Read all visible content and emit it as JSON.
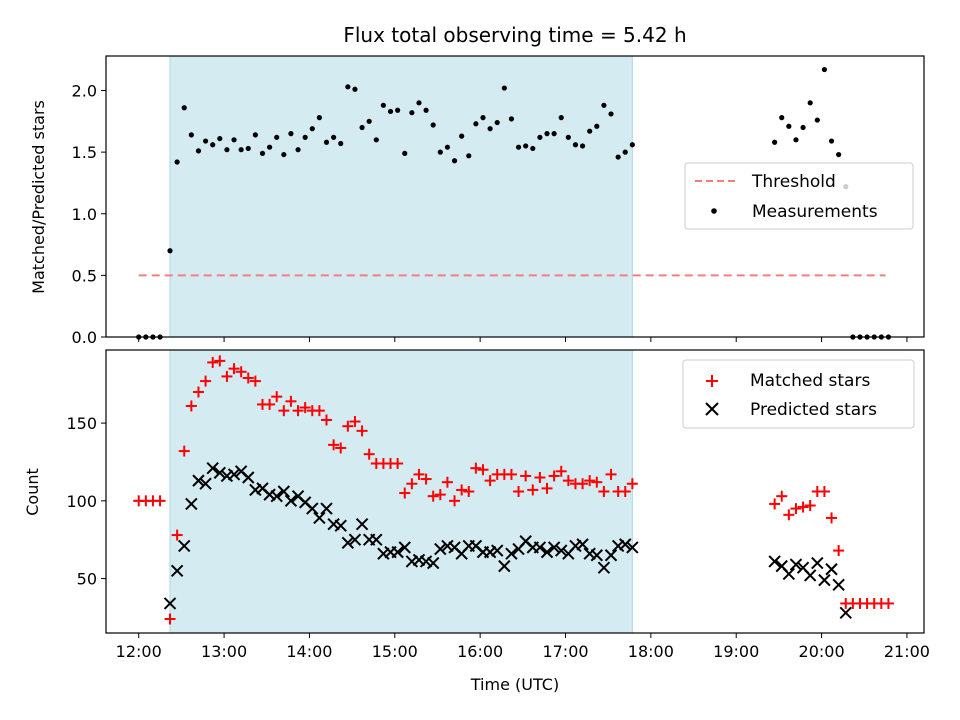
{
  "chart_data": [
    {
      "type": "scatter",
      "title": "Flux total observing time = 5.42 h",
      "xlabel": "",
      "ylabel": "Matched/Predicted stars",
      "xlim": [
        "11:37",
        "21:12"
      ],
      "ylim": [
        0,
        2.28
      ],
      "yticks": [
        0.0,
        0.5,
        1.0,
        1.5,
        2.0
      ],
      "ytick_labels": [
        "0.0",
        "0.5",
        "1.0",
        "1.5",
        "2.0"
      ],
      "shaded_interval": [
        "12:22",
        "17:47"
      ],
      "legend": {
        "placement": "center-right",
        "entries": [
          "Threshold",
          "Measurements"
        ]
      },
      "series": [
        {
          "name": "Threshold",
          "kind": "dashed-line",
          "color": "#f08080",
          "points": [
            [
              "12:00",
              0.5
            ],
            [
              "20:45",
              0.5
            ]
          ]
        },
        {
          "name": "Measurements",
          "kind": "dot",
          "color": "#000000",
          "points": [
            [
              "12:00",
              0.0
            ],
            [
              "12:05",
              0.0
            ],
            [
              "12:10",
              0.0
            ],
            [
              "12:15",
              0.0
            ],
            [
              "12:22",
              0.7
            ],
            [
              "12:27",
              1.42
            ],
            [
              "12:32",
              1.86
            ],
            [
              "12:37",
              1.64
            ],
            [
              "12:42",
              1.51
            ],
            [
              "12:47",
              1.59
            ],
            [
              "12:52",
              1.56
            ],
            [
              "12:57",
              1.61
            ],
            [
              "13:02",
              1.52
            ],
            [
              "13:07",
              1.6
            ],
            [
              "13:12",
              1.52
            ],
            [
              "13:17",
              1.53
            ],
            [
              "13:22",
              1.64
            ],
            [
              "13:27",
              1.49
            ],
            [
              "13:32",
              1.54
            ],
            [
              "13:37",
              1.62
            ],
            [
              "13:42",
              1.48
            ],
            [
              "13:47",
              1.65
            ],
            [
              "13:52",
              1.52
            ],
            [
              "13:57",
              1.62
            ],
            [
              "14:02",
              1.69
            ],
            [
              "14:07",
              1.78
            ],
            [
              "14:12",
              1.58
            ],
            [
              "14:17",
              1.62
            ],
            [
              "14:22",
              1.57
            ],
            [
              "14:27",
              2.03
            ],
            [
              "14:32",
              2.01
            ],
            [
              "14:37",
              1.7
            ],
            [
              "14:42",
              1.75
            ],
            [
              "14:47",
              1.6
            ],
            [
              "14:52",
              1.88
            ],
            [
              "14:57",
              1.83
            ],
            [
              "15:02",
              1.84
            ],
            [
              "15:07",
              1.49
            ],
            [
              "15:12",
              1.82
            ],
            [
              "15:17",
              1.9
            ],
            [
              "15:22",
              1.84
            ],
            [
              "15:27",
              1.72
            ],
            [
              "15:32",
              1.5
            ],
            [
              "15:37",
              1.54
            ],
            [
              "15:42",
              1.43
            ],
            [
              "15:47",
              1.63
            ],
            [
              "15:52",
              1.47
            ],
            [
              "15:57",
              1.73
            ],
            [
              "16:02",
              1.78
            ],
            [
              "16:07",
              1.69
            ],
            [
              "16:12",
              1.74
            ],
            [
              "16:17",
              2.02
            ],
            [
              "16:22",
              1.77
            ],
            [
              "16:27",
              1.54
            ],
            [
              "16:32",
              1.55
            ],
            [
              "16:37",
              1.53
            ],
            [
              "16:42",
              1.62
            ],
            [
              "16:47",
              1.65
            ],
            [
              "16:52",
              1.65
            ],
            [
              "16:57",
              1.78
            ],
            [
              "17:02",
              1.62
            ],
            [
              "17:07",
              1.56
            ],
            [
              "17:12",
              1.55
            ],
            [
              "17:17",
              1.67
            ],
            [
              "17:22",
              1.71
            ],
            [
              "17:27",
              1.88
            ],
            [
              "17:32",
              1.81
            ],
            [
              "17:37",
              1.46
            ],
            [
              "17:42",
              1.5
            ],
            [
              "17:47",
              1.56
            ],
            [
              "19:27",
              1.58
            ],
            [
              "19:32",
              1.78
            ],
            [
              "19:37",
              1.71
            ],
            [
              "19:42",
              1.6
            ],
            [
              "19:47",
              1.7
            ],
            [
              "19:52",
              1.9
            ],
            [
              "19:57",
              1.76
            ],
            [
              "20:02",
              2.17
            ],
            [
              "20:07",
              1.59
            ],
            [
              "20:12",
              1.48
            ],
            [
              "20:17",
              1.22
            ],
            [
              "20:22",
              0.0
            ],
            [
              "20:27",
              0.0
            ],
            [
              "20:32",
              0.0
            ],
            [
              "20:37",
              0.0
            ],
            [
              "20:42",
              0.0
            ],
            [
              "20:47",
              0.0
            ]
          ]
        }
      ]
    },
    {
      "type": "scatter",
      "title": "",
      "xlabel": "Time (UTC)",
      "ylabel": "Count",
      "xlim": [
        "11:37",
        "21:12"
      ],
      "ylim": [
        15,
        197
      ],
      "xticks": [
        "12:00",
        "13:00",
        "14:00",
        "15:00",
        "16:00",
        "17:00",
        "18:00",
        "19:00",
        "20:00",
        "21:00"
      ],
      "yticks": [
        50,
        100,
        150
      ],
      "shaded_interval": [
        "12:22",
        "17:47"
      ],
      "legend": {
        "placement": "top-right",
        "entries": [
          "Matched stars",
          "Predicted stars"
        ]
      },
      "series": [
        {
          "name": "Matched stars",
          "kind": "plus",
          "color": "#ff0000",
          "points": [
            [
              "12:00",
              100
            ],
            [
              "12:05",
              100
            ],
            [
              "12:10",
              100
            ],
            [
              "12:15",
              100
            ],
            [
              "12:22",
              24
            ],
            [
              "12:27",
              78
            ],
            [
              "12:32",
              132
            ],
            [
              "12:37",
              161
            ],
            [
              "12:42",
              170
            ],
            [
              "12:47",
              177
            ],
            [
              "12:52",
              189
            ],
            [
              "12:57",
              190
            ],
            [
              "13:02",
              180
            ],
            [
              "13:07",
              185
            ],
            [
              "13:12",
              183
            ],
            [
              "13:17",
              179
            ],
            [
              "13:22",
              177
            ],
            [
              "13:27",
              162
            ],
            [
              "13:32",
              162
            ],
            [
              "13:37",
              167
            ],
            [
              "13:42",
              158
            ],
            [
              "13:47",
              164
            ],
            [
              "13:52",
              158
            ],
            [
              "13:57",
              160
            ],
            [
              "14:02",
              158
            ],
            [
              "14:07",
              158
            ],
            [
              "14:12",
              152
            ],
            [
              "14:17",
              136
            ],
            [
              "14:22",
              134
            ],
            [
              "14:27",
              148
            ],
            [
              "14:32",
              151
            ],
            [
              "14:37",
              145
            ],
            [
              "14:42",
              130
            ],
            [
              "14:47",
              124
            ],
            [
              "14:52",
              124
            ],
            [
              "14:57",
              124
            ],
            [
              "15:02",
              124
            ],
            [
              "15:07",
              105
            ],
            [
              "15:12",
              111
            ],
            [
              "15:17",
              117
            ],
            [
              "15:22",
              114
            ],
            [
              "15:27",
              103
            ],
            [
              "15:32",
              104
            ],
            [
              "15:37",
              112
            ],
            [
              "15:42",
              100
            ],
            [
              "15:47",
              107
            ],
            [
              "15:52",
              106
            ],
            [
              "15:57",
              121
            ],
            [
              "16:02",
              120
            ],
            [
              "16:07",
              113
            ],
            [
              "16:12",
              117
            ],
            [
              "16:17",
              117
            ],
            [
              "16:22",
              117
            ],
            [
              "16:27",
              106
            ],
            [
              "16:32",
              116
            ],
            [
              "16:37",
              107
            ],
            [
              "16:42",
              115
            ],
            [
              "16:47",
              108
            ],
            [
              "16:52",
              116
            ],
            [
              "16:57",
              119
            ],
            [
              "17:02",
              113
            ],
            [
              "17:07",
              111
            ],
            [
              "17:12",
              111
            ],
            [
              "17:17",
              113
            ],
            [
              "17:22",
              112
            ],
            [
              "17:27",
              106
            ],
            [
              "17:32",
              117
            ],
            [
              "17:37",
              106
            ],
            [
              "17:42",
              106
            ],
            [
              "17:47",
              111
            ],
            [
              "19:27",
              98
            ],
            [
              "19:32",
              103
            ],
            [
              "19:37",
              91
            ],
            [
              "19:42",
              95
            ],
            [
              "19:47",
              96
            ],
            [
              "19:52",
              97
            ],
            [
              "19:57",
              106
            ],
            [
              "20:02",
              106
            ],
            [
              "20:07",
              89
            ],
            [
              "20:12",
              68
            ],
            [
              "20:17",
              34
            ],
            [
              "20:22",
              34
            ],
            [
              "20:27",
              34
            ],
            [
              "20:32",
              34
            ],
            [
              "20:37",
              34
            ],
            [
              "20:42",
              34
            ],
            [
              "20:47",
              34
            ]
          ]
        },
        {
          "name": "Predicted stars",
          "kind": "cross",
          "color": "#000000",
          "points": [
            [
              "12:22",
              34
            ],
            [
              "12:27",
              55
            ],
            [
              "12:32",
              71
            ],
            [
              "12:37",
              98
            ],
            [
              "12:42",
              113
            ],
            [
              "12:47",
              111
            ],
            [
              "12:52",
              121
            ],
            [
              "12:57",
              118
            ],
            [
              "13:02",
              116
            ],
            [
              "13:07",
              117
            ],
            [
              "13:12",
              119
            ],
            [
              "13:17",
              115
            ],
            [
              "13:22",
              107
            ],
            [
              "13:27",
              108
            ],
            [
              "13:32",
              104
            ],
            [
              "13:37",
              103
            ],
            [
              "13:42",
              106
            ],
            [
              "13:47",
              100
            ],
            [
              "13:52",
              103
            ],
            [
              "13:57",
              99
            ],
            [
              "14:02",
              95
            ],
            [
              "14:07",
              89
            ],
            [
              "14:12",
              95
            ],
            [
              "14:17",
              85
            ],
            [
              "14:22",
              84
            ],
            [
              "14:27",
              73
            ],
            [
              "14:32",
              75
            ],
            [
              "14:37",
              85
            ],
            [
              "14:42",
              75
            ],
            [
              "14:47",
              75
            ],
            [
              "14:52",
              66
            ],
            [
              "14:57",
              67
            ],
            [
              "15:02",
              67
            ],
            [
              "15:07",
              70
            ],
            [
              "15:12",
              61
            ],
            [
              "15:17",
              62
            ],
            [
              "15:22",
              61
            ],
            [
              "15:27",
              60
            ],
            [
              "15:32",
              69
            ],
            [
              "15:37",
              71
            ],
            [
              "15:42",
              70
            ],
            [
              "15:47",
              66
            ],
            [
              "15:52",
              71
            ],
            [
              "15:57",
              71
            ],
            [
              "16:02",
              67
            ],
            [
              "16:07",
              67
            ],
            [
              "16:12",
              68
            ],
            [
              "16:17",
              58
            ],
            [
              "16:22",
              66
            ],
            [
              "16:27",
              69
            ],
            [
              "16:32",
              74
            ],
            [
              "16:37",
              70
            ],
            [
              "16:42",
              70
            ],
            [
              "16:47",
              67
            ],
            [
              "16:52",
              70
            ],
            [
              "16:57",
              68
            ],
            [
              "17:02",
              66
            ],
            [
              "17:07",
              71
            ],
            [
              "17:12",
              72
            ],
            [
              "17:17",
              66
            ],
            [
              "17:22",
              65
            ],
            [
              "17:27",
              57
            ],
            [
              "17:32",
              65
            ],
            [
              "17:37",
              71
            ],
            [
              "17:42",
              72
            ],
            [
              "17:47",
              70
            ],
            [
              "19:27",
              61
            ],
            [
              "19:32",
              58
            ],
            [
              "19:37",
              53
            ],
            [
              "19:42",
              59
            ],
            [
              "19:47",
              57
            ],
            [
              "19:52",
              52
            ],
            [
              "19:57",
              60
            ],
            [
              "20:02",
              49
            ],
            [
              "20:07",
              56
            ],
            [
              "20:12",
              46
            ],
            [
              "20:17",
              28
            ]
          ]
        }
      ]
    }
  ]
}
